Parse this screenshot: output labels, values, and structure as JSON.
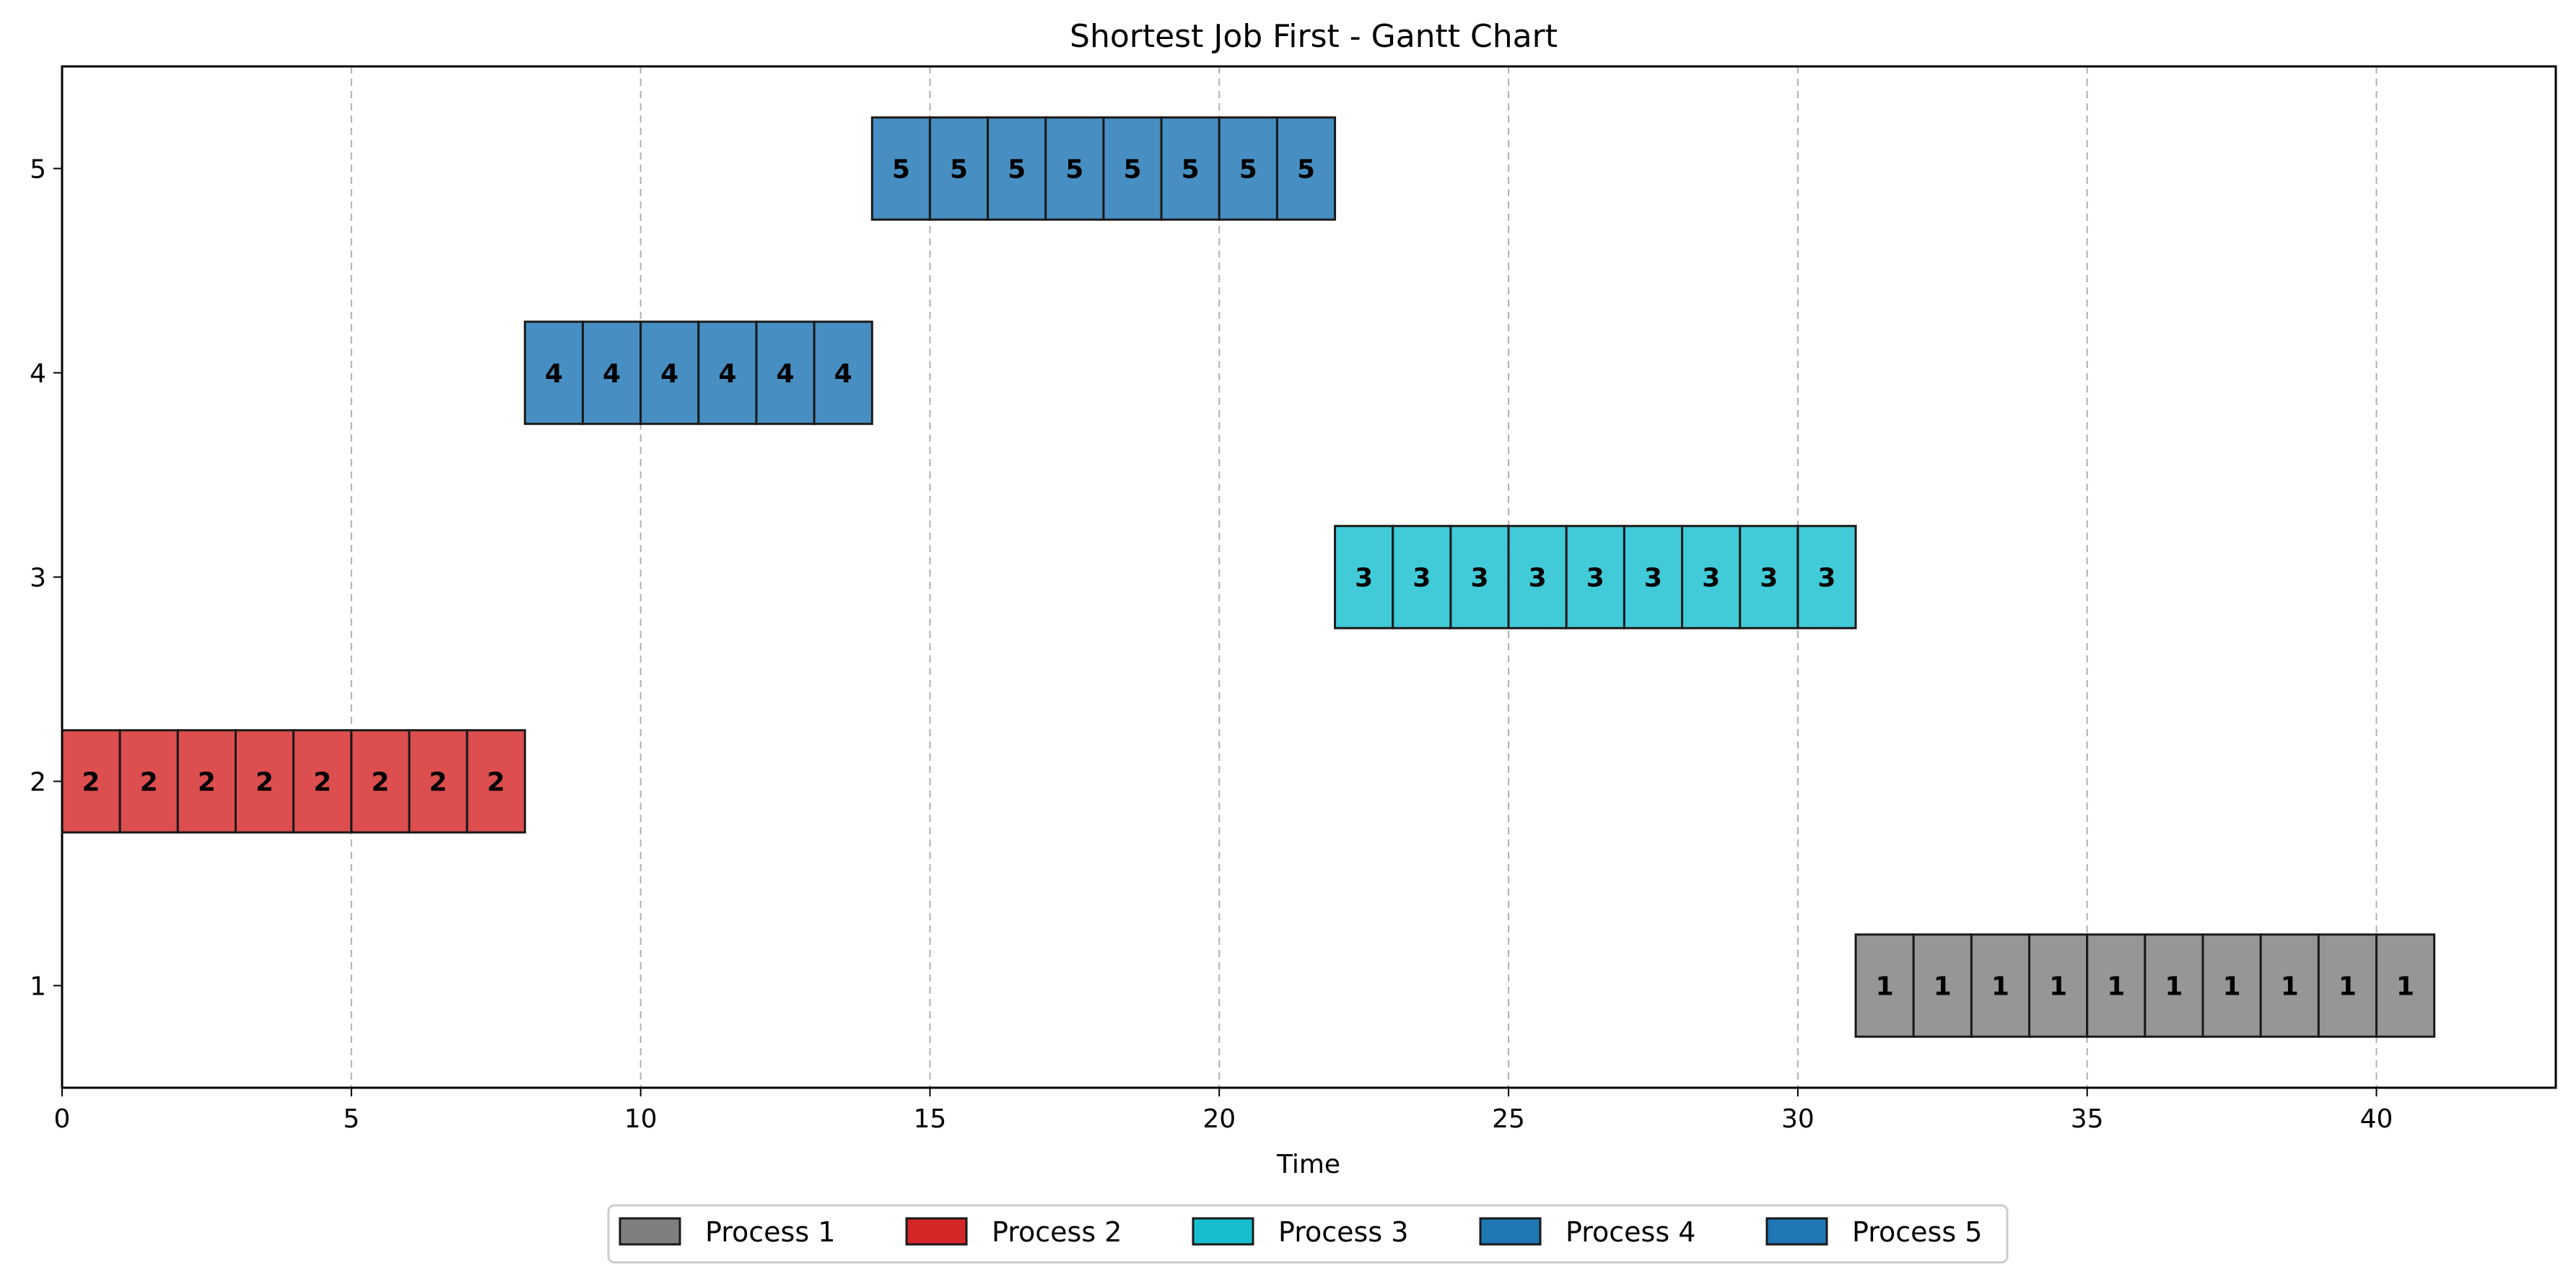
{
  "chart_data": {
    "type": "gantt",
    "title": "Shortest Job First - Gantt Chart",
    "xlabel": "Time",
    "ylabel": "",
    "xlim": [
      0,
      43.1
    ],
    "ylim": [
      0.5,
      5.5
    ],
    "xticks": [
      0,
      5,
      10,
      15,
      20,
      25,
      30,
      35,
      40
    ],
    "yticks": [
      1,
      2,
      3,
      4,
      5
    ],
    "grid": "x-dashed",
    "legend_position": "bottom-center",
    "processes": [
      {
        "id": 1,
        "name": "Process 1",
        "start": 31,
        "end": 41,
        "row": 1,
        "color": "#7f7f7f"
      },
      {
        "id": 2,
        "name": "Process 2",
        "start": 0,
        "end": 8,
        "row": 2,
        "color": "#d62728"
      },
      {
        "id": 3,
        "name": "Process 3",
        "start": 22,
        "end": 31,
        "row": 3,
        "color": "#17becf"
      },
      {
        "id": 4,
        "name": "Process 4",
        "start": 8,
        "end": 14,
        "row": 4,
        "color": "#1f77b4"
      },
      {
        "id": 5,
        "name": "Process 5",
        "start": 14,
        "end": 22,
        "row": 5,
        "color": "#1f77b4"
      }
    ]
  }
}
